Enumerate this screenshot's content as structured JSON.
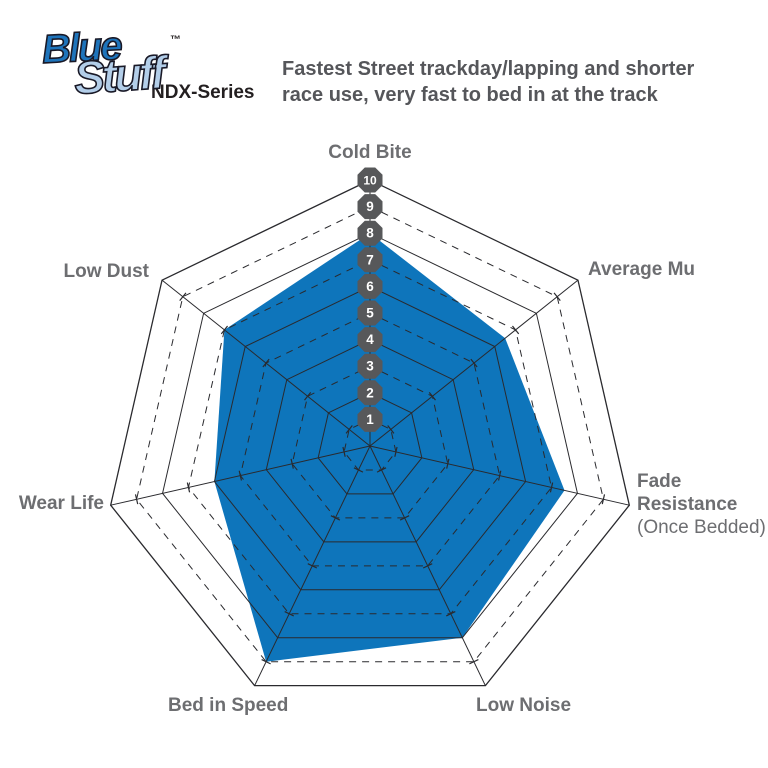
{
  "logo": {
    "word1": "Blue",
    "word2": "Stuff",
    "trademark": "™",
    "series": "NDX-Series"
  },
  "description": {
    "line1": "Fastest Street trackday/lapping and shorter",
    "line2": "race use, very fast to bed in at the track"
  },
  "chart_data": {
    "type": "radar",
    "shape": "heptagon",
    "categories": [
      "Cold Bite",
      "Average Mu",
      "Fade Resistance (Once Bedded)",
      "Low Noise",
      "Bed in Speed",
      "Wear Life",
      "Low Dust"
    ],
    "series": [
      {
        "name": "Bluestuff NDX-Series",
        "values": [
          8,
          6.5,
          7.5,
          8,
          9,
          6,
          7
        ]
      }
    ],
    "scale": {
      "min": 0,
      "max": 10,
      "ticks": [
        1,
        2,
        3,
        4,
        5,
        6,
        7,
        8,
        9,
        10
      ]
    },
    "grid": {
      "rings": 10,
      "odd_rings_dashed": true,
      "axes": 7
    },
    "legend": "none",
    "colors": {
      "fill": "#0e75bb",
      "grid": "#2a2a2e",
      "badge": "#57585a",
      "badge_text": "#ffffff",
      "label": "#6d6e71"
    }
  },
  "axis_labels": {
    "cold_bite": "Cold Bite",
    "average_mu": "Average Mu",
    "fade_line1": "Fade",
    "fade_line2": "Resistance",
    "fade_line3": "(Once Bedded)",
    "low_noise": "Low Noise",
    "bed_in_speed": "Bed in Speed",
    "wear_life": "Wear Life",
    "low_dust": "Low Dust"
  }
}
